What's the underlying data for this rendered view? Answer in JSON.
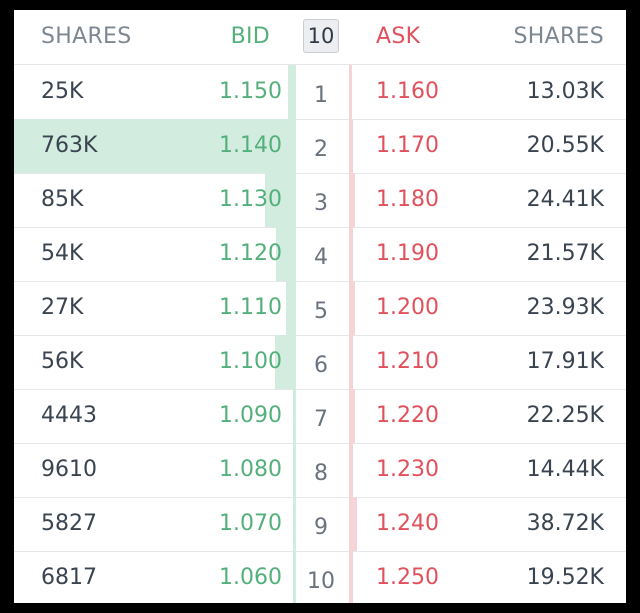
{
  "header": {
    "bid_shares_label": "SHARES",
    "bid_label": "BID",
    "depth_value": "10",
    "ask_label": "ASK",
    "ask_shares_label": "SHARES"
  },
  "colors": {
    "bid": "#54b07b",
    "ask": "#e0515c",
    "bid_bar": "#d3ece0",
    "ask_bar": "#f5d3d6"
  },
  "rows": [
    {
      "level": "1",
      "bid_shares": "25K",
      "bid": "1.150",
      "ask": "1.160",
      "ask_shares": "13.03K",
      "bid_depth_pct": 3,
      "ask_depth_pct": 1
    },
    {
      "level": "2",
      "bid_shares": "763K",
      "bid": "1.140",
      "ask": "1.170",
      "ask_shares": "20.55K",
      "bid_depth_pct": 100,
      "ask_depth_pct": 1.5
    },
    {
      "level": "3",
      "bid_shares": "85K",
      "bid": "1.130",
      "ask": "1.180",
      "ask_shares": "24.41K",
      "bid_depth_pct": 11,
      "ask_depth_pct": 2
    },
    {
      "level": "4",
      "bid_shares": "54K",
      "bid": "1.120",
      "ask": "1.190",
      "ask_shares": "21.57K",
      "bid_depth_pct": 7,
      "ask_depth_pct": 1.5
    },
    {
      "level": "5",
      "bid_shares": "27K",
      "bid": "1.110",
      "ask": "1.200",
      "ask_shares": "23.93K",
      "bid_depth_pct": 3.5,
      "ask_depth_pct": 2
    },
    {
      "level": "6",
      "bid_shares": "56K",
      "bid": "1.100",
      "ask": "1.210",
      "ask_shares": "17.91K",
      "bid_depth_pct": 7.5,
      "ask_depth_pct": 1.5
    },
    {
      "level": "7",
      "bid_shares": "4443",
      "bid": "1.090",
      "ask": "1.220",
      "ask_shares": "22.25K",
      "bid_depth_pct": 0.6,
      "ask_depth_pct": 2
    },
    {
      "level": "8",
      "bid_shares": "9610",
      "bid": "1.080",
      "ask": "1.230",
      "ask_shares": "14.44K",
      "bid_depth_pct": 1.2,
      "ask_depth_pct": 1.5
    },
    {
      "level": "9",
      "bid_shares": "5827",
      "bid": "1.070",
      "ask": "1.240",
      "ask_shares": "38.72K",
      "bid_depth_pct": 0.8,
      "ask_depth_pct": 3
    },
    {
      "level": "10",
      "bid_shares": "6817",
      "bid": "1.060",
      "ask": "1.250",
      "ask_shares": "19.52K",
      "bid_depth_pct": 0.9,
      "ask_depth_pct": 1.5
    }
  ]
}
